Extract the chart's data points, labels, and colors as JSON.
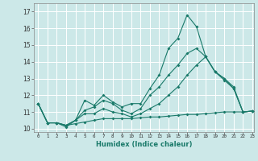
{
  "title": "",
  "xlabel": "Humidex (Indice chaleur)",
  "bg_color": "#cce8e8",
  "grid_color": "#ffffff",
  "line_color": "#1a7a6a",
  "xlim": [
    -0.5,
    23.2
  ],
  "ylim": [
    9.8,
    17.5
  ],
  "xticks": [
    0,
    1,
    2,
    3,
    4,
    5,
    6,
    7,
    8,
    9,
    10,
    11,
    12,
    13,
    14,
    15,
    16,
    17,
    18,
    19,
    20,
    21,
    22,
    23
  ],
  "yticks": [
    10,
    11,
    12,
    13,
    14,
    15,
    16,
    17
  ],
  "lines": [
    {
      "x": [
        0,
        1,
        2,
        3,
        4,
        5,
        6,
        7,
        8,
        9,
        10,
        11,
        12,
        13,
        14,
        15,
        16,
        17,
        18,
        19,
        20,
        21,
        22,
        23
      ],
      "y": [
        11.5,
        10.35,
        10.35,
        10.1,
        10.5,
        11.7,
        11.4,
        12.0,
        11.6,
        11.3,
        11.5,
        11.5,
        12.4,
        13.2,
        14.8,
        15.4,
        16.8,
        16.1,
        14.3,
        13.4,
        12.9,
        12.4,
        11.0,
        11.05
      ]
    },
    {
      "x": [
        0,
        1,
        2,
        3,
        4,
        5,
        6,
        7,
        8,
        9,
        10,
        11,
        12,
        13,
        14,
        15,
        16,
        17,
        18,
        19,
        20,
        21,
        22,
        23
      ],
      "y": [
        11.5,
        10.35,
        10.35,
        10.2,
        10.5,
        11.1,
        11.3,
        11.7,
        11.5,
        11.1,
        10.9,
        11.2,
        12.0,
        12.5,
        13.2,
        13.8,
        14.5,
        14.8,
        14.3,
        13.4,
        13.0,
        12.4,
        11.0,
        11.05
      ]
    },
    {
      "x": [
        0,
        1,
        2,
        3,
        4,
        5,
        6,
        7,
        8,
        9,
        10,
        11,
        12,
        13,
        14,
        15,
        16,
        17,
        18,
        19,
        20,
        21,
        22,
        23
      ],
      "y": [
        11.5,
        10.35,
        10.35,
        10.2,
        10.5,
        10.9,
        10.9,
        11.2,
        11.0,
        10.9,
        10.7,
        10.9,
        11.2,
        11.5,
        12.0,
        12.5,
        13.2,
        13.8,
        14.3,
        13.4,
        13.0,
        12.5,
        11.0,
        11.05
      ]
    },
    {
      "x": [
        0,
        1,
        2,
        3,
        4,
        5,
        6,
        7,
        8,
        9,
        10,
        11,
        12,
        13,
        14,
        15,
        16,
        17,
        18,
        19,
        20,
        21,
        22,
        23
      ],
      "y": [
        11.5,
        10.35,
        10.35,
        10.2,
        10.3,
        10.4,
        10.5,
        10.6,
        10.6,
        10.6,
        10.6,
        10.65,
        10.7,
        10.7,
        10.75,
        10.8,
        10.85,
        10.85,
        10.9,
        10.95,
        11.0,
        11.0,
        11.0,
        11.05
      ]
    }
  ]
}
